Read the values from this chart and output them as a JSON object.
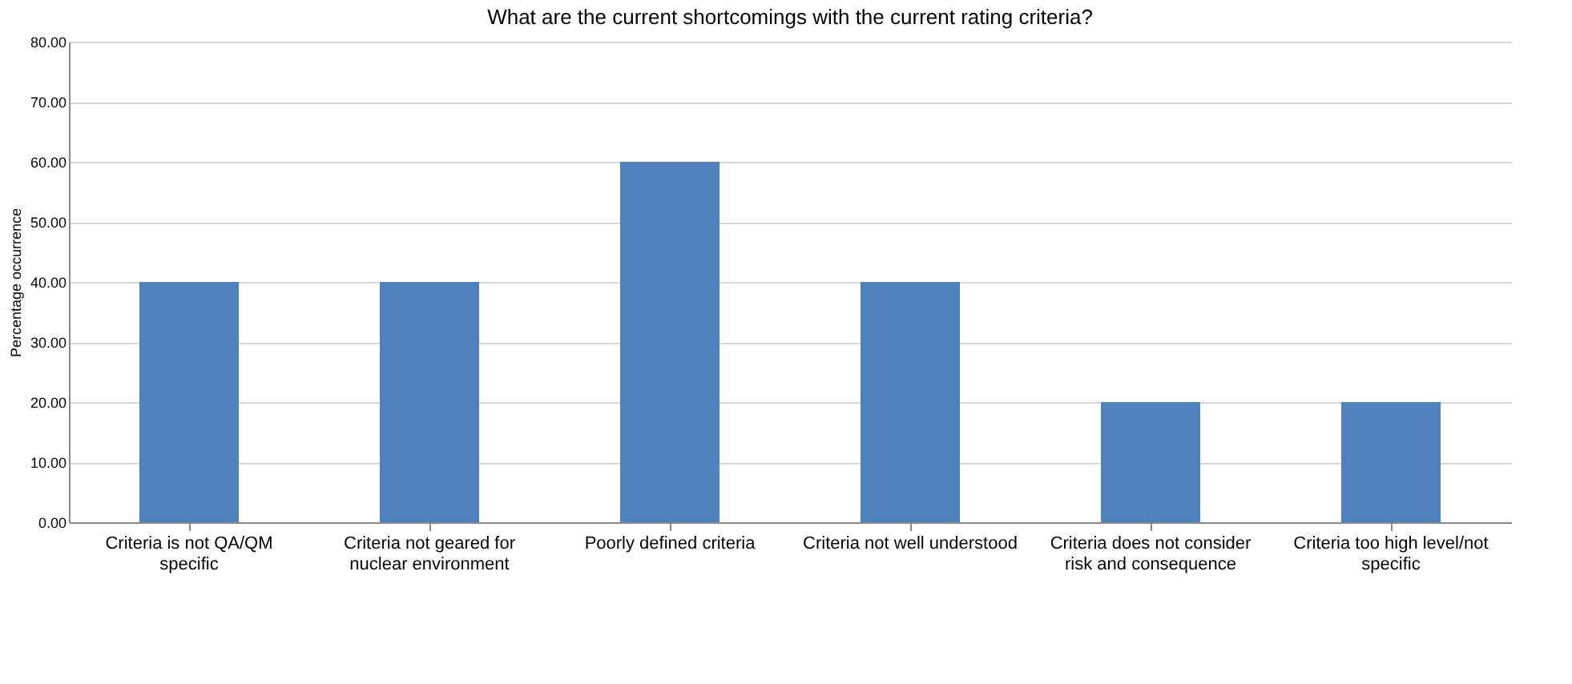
{
  "chart_data": {
    "type": "bar",
    "title": "What are the current shortcomings with the current rating criteria?",
    "ylabel": "Percentage occurrence",
    "categories": [
      "Criteria is not QA/QM specific",
      "Criteria not geared for nuclear environment",
      "Poorly defined criteria",
      "Criteria not well understood",
      "Criteria does not consider risk and consequence",
      "Criteria too high level/not specific"
    ],
    "values": [
      40,
      40,
      60,
      40,
      20,
      20
    ],
    "color": "#4f81bd",
    "ylim": [
      0,
      80
    ],
    "yticks": [
      {
        "value": 0,
        "label": "0.00"
      },
      {
        "value": 10,
        "label": "10.00"
      },
      {
        "value": 20,
        "label": "20.00"
      },
      {
        "value": 30,
        "label": "30.00"
      },
      {
        "value": 40,
        "label": "40.00"
      },
      {
        "value": 50,
        "label": "50.00"
      },
      {
        "value": 60,
        "label": "60.00"
      },
      {
        "value": 70,
        "label": "70.00"
      },
      {
        "value": 80,
        "label": "80.00"
      }
    ],
    "grid": "y"
  }
}
